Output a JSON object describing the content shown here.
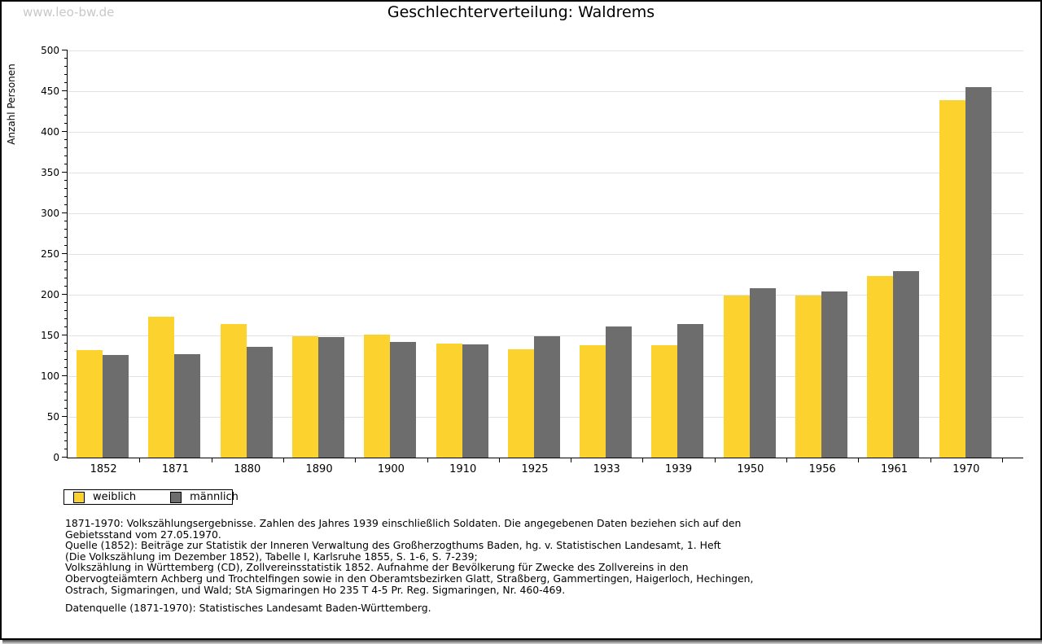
{
  "watermark": "www.leo-bw.de",
  "chart_data": {
    "type": "bar",
    "title": "Geschlechterverteilung: Waldrems",
    "categories": [
      "1852",
      "1871",
      "1880",
      "1890",
      "1900",
      "1910",
      "1925",
      "1933",
      "1939",
      "1950",
      "1956",
      "1961",
      "1970"
    ],
    "series": [
      {
        "name": "weiblich",
        "color": "#fcd32e",
        "values": [
          132,
          173,
          164,
          149,
          151,
          140,
          133,
          138,
          138,
          199,
          199,
          223,
          439
        ]
      },
      {
        "name": "männlich",
        "color": "#6d6d6d",
        "values": [
          126,
          127,
          136,
          148,
          142,
          139,
          149,
          161,
          164,
          208,
          204,
          229,
          455
        ]
      }
    ],
    "xlabel": "",
    "ylabel": "Anzahl Personen",
    "ylim": [
      0,
      500
    ],
    "ytick_major": 50,
    "ytick_minor": 10,
    "grid": true,
    "legend_position": "bottom-left",
    "gridline_color": "#e2e2e2"
  },
  "footnote": {
    "lines": [
      "1871-1970: Volkszählungsergebnisse. Zahlen des Jahres 1939 einschließlich Soldaten. Die angegebenen Daten beziehen sich auf den",
      "Gebietsstand vom 27.05.1970.",
      "Quelle (1852): Beiträge zur Statistik der Inneren Verwaltung des Großherzogthums Baden, hg. v. Statistischen Landesamt, 1. Heft",
      "(Die Volkszählung im Dezember 1852), Tabelle I, Karlsruhe 1855, S. 1-6, S. 7-239;",
      "Volkszählung in Württemberg (CD), Zollvereinsstatistik 1852. Aufnahme der Bevölkerung für Zwecke des Zollvereins in den",
      "Obervogteiämtern Achberg und Trochtelfingen sowie in den Oberamtsbezirken Glatt, Straßberg, Gammertingen, Haigerloch, Hechingen,",
      "Ostrach, Sigmaringen, und Wald; StA Sigmaringen Ho 235 T 4-5 Pr. Reg. Sigmaringen, Nr. 460-469."
    ],
    "datasource": "Datenquelle (1871-1970): Statistisches Landesamt Baden-Württemberg."
  }
}
